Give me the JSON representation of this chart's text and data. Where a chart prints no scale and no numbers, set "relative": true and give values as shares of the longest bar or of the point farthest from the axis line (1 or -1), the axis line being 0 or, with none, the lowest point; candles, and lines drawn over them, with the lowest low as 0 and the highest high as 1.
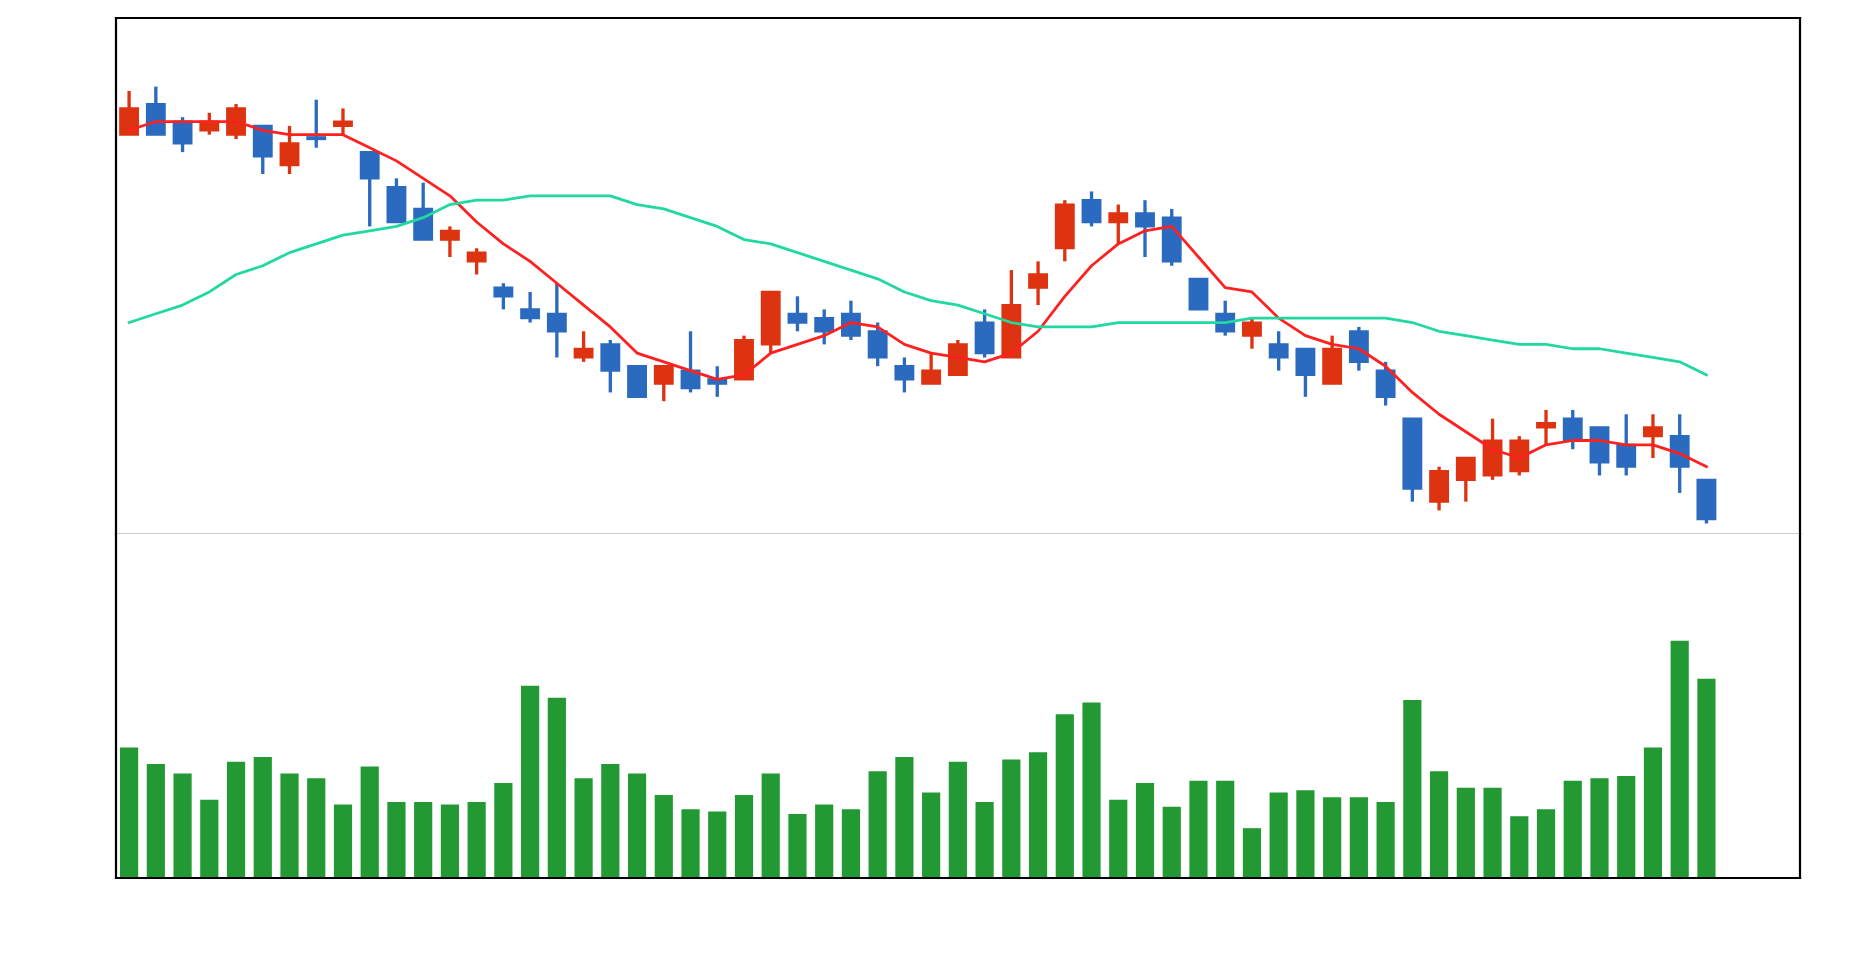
{
  "chart_data": [
    {
      "type": "candlestick",
      "relative": true,
      "categories": [
        null,
        null,
        null,
        null,
        null,
        null,
        null,
        null,
        null,
        null,
        null,
        null,
        null,
        null,
        null,
        null,
        null,
        null,
        null,
        null,
        null,
        null,
        null,
        null,
        null,
        null,
        null,
        null,
        null,
        null,
        null,
        null,
        null,
        null,
        null,
        null,
        null,
        null,
        null,
        null,
        null,
        null,
        null,
        null,
        null,
        null,
        null,
        null,
        null,
        null,
        null,
        null,
        null,
        null,
        null,
        null,
        null,
        null,
        null,
        null
      ],
      "ohlc": [
        [
          0.89,
          0.99,
          0.89,
          0.95
        ],
        [
          0.96,
          1.0,
          0.89,
          0.89
        ],
        [
          0.92,
          0.93,
          0.85,
          0.87
        ],
        [
          0.9,
          0.94,
          0.89,
          0.92
        ],
        [
          0.89,
          0.96,
          0.88,
          0.95
        ],
        [
          0.91,
          0.91,
          0.8,
          0.84
        ],
        [
          0.82,
          0.91,
          0.8,
          0.87
        ],
        [
          0.88,
          0.97,
          0.86,
          0.88
        ],
        [
          0.91,
          0.95,
          0.89,
          0.92
        ],
        [
          0.85,
          0.85,
          0.68,
          0.79
        ],
        [
          0.77,
          0.79,
          0.69,
          0.69
        ],
        [
          0.72,
          0.78,
          0.65,
          0.65
        ],
        [
          0.65,
          0.68,
          0.61,
          0.67
        ],
        [
          0.6,
          0.63,
          0.57,
          0.62
        ],
        [
          0.54,
          0.55,
          0.49,
          0.52
        ],
        [
          0.49,
          0.53,
          0.46,
          0.47
        ],
        [
          0.48,
          0.55,
          0.38,
          0.44
        ],
        [
          0.38,
          0.44,
          0.37,
          0.4
        ],
        [
          0.41,
          0.42,
          0.3,
          0.35
        ],
        [
          0.36,
          0.36,
          0.29,
          0.29
        ],
        [
          0.32,
          0.36,
          0.28,
          0.36
        ],
        [
          0.35,
          0.44,
          0.3,
          0.31
        ],
        [
          0.33,
          0.36,
          0.29,
          0.32
        ],
        [
          0.33,
          0.43,
          0.33,
          0.42
        ],
        [
          0.41,
          0.53,
          0.39,
          0.53
        ],
        [
          0.48,
          0.52,
          0.44,
          0.46
        ],
        [
          0.47,
          0.49,
          0.41,
          0.44
        ],
        [
          0.48,
          0.51,
          0.42,
          0.43
        ],
        [
          0.44,
          0.46,
          0.36,
          0.38
        ],
        [
          0.36,
          0.38,
          0.3,
          0.33
        ],
        [
          0.32,
          0.39,
          0.32,
          0.35
        ],
        [
          0.34,
          0.42,
          0.34,
          0.41
        ],
        [
          0.46,
          0.49,
          0.38,
          0.39
        ],
        [
          0.38,
          0.58,
          0.38,
          0.5
        ],
        [
          0.54,
          0.6,
          0.5,
          0.57
        ],
        [
          0.63,
          0.74,
          0.6,
          0.73
        ],
        [
          0.74,
          0.76,
          0.68,
          0.69
        ],
        [
          0.69,
          0.73,
          0.64,
          0.71
        ],
        [
          0.71,
          0.74,
          0.61,
          0.68
        ],
        [
          0.7,
          0.72,
          0.59,
          0.6
        ],
        [
          0.56,
          0.56,
          0.49,
          0.49
        ],
        [
          0.48,
          0.51,
          0.43,
          0.44
        ],
        [
          0.43,
          0.47,
          0.4,
          0.46
        ],
        [
          0.41,
          0.44,
          0.35,
          0.38
        ],
        [
          0.4,
          0.4,
          0.29,
          0.34
        ],
        [
          0.32,
          0.43,
          0.32,
          0.4
        ],
        [
          0.44,
          0.45,
          0.35,
          0.37
        ],
        [
          0.35,
          0.37,
          0.27,
          0.29
        ],
        [
          0.24,
          0.24,
          0.05,
          0.08
        ],
        [
          0.05,
          0.13,
          0.03,
          0.12
        ],
        [
          0.1,
          0.15,
          0.05,
          0.15
        ],
        [
          0.11,
          0.24,
          0.1,
          0.19
        ],
        [
          0.12,
          0.2,
          0.11,
          0.19
        ],
        [
          0.22,
          0.26,
          0.18,
          0.23
        ],
        [
          0.24,
          0.26,
          0.17,
          0.19
        ],
        [
          0.22,
          0.22,
          0.11,
          0.14
        ],
        [
          0.18,
          0.25,
          0.11,
          0.13
        ],
        [
          0.2,
          0.25,
          0.15,
          0.22
        ],
        [
          0.2,
          0.25,
          0.07,
          0.13
        ],
        [
          0.1,
          0.1,
          0.0,
          0.01
        ]
      ],
      "colors": [
        "#dd3311",
        "#2a6abf",
        "#2a6abf",
        "#dd3311",
        "#dd3311",
        "#2a6abf",
        "#dd3311",
        "#2a6abf",
        "#dd3311",
        "#2a6abf",
        "#2a6abf",
        "#2a6abf",
        "#dd3311",
        "#dd3311",
        "#2a6abf",
        "#2a6abf",
        "#2a6abf",
        "#dd3311",
        "#2a6abf",
        "#2a6abf",
        "#dd3311",
        "#2a6abf",
        "#2a6abf",
        "#dd3311",
        "#dd3311",
        "#2a6abf",
        "#2a6abf",
        "#2a6abf",
        "#2a6abf",
        "#2a6abf",
        "#dd3311",
        "#dd3311",
        "#2a6abf",
        "#dd3311",
        "#dd3311",
        "#dd3311",
        "#2a6abf",
        "#dd3311",
        "#2a6abf",
        "#2a6abf",
        "#2a6abf",
        "#2a6abf",
        "#dd3311",
        "#2a6abf",
        "#2a6abf",
        "#dd3311",
        "#2a6abf",
        "#2a6abf",
        "#2a6abf",
        "#dd3311",
        "#dd3311",
        "#dd3311",
        "#dd3311",
        "#dd3311",
        "#2a6abf",
        "#2a6abf",
        "#2a6abf",
        "#dd3311",
        "#2a6abf",
        "#2a6abf"
      ],
      "series": [
        {
          "type": "line",
          "color": "#ff2020",
          "values": [
            0.9,
            0.92,
            0.92,
            0.92,
            0.92,
            0.9,
            0.89,
            0.89,
            0.89,
            0.86,
            0.83,
            0.79,
            0.75,
            0.69,
            0.64,
            0.6,
            0.55,
            0.5,
            0.45,
            0.39,
            0.37,
            0.35,
            0.33,
            0.34,
            0.39,
            0.41,
            0.43,
            0.46,
            0.45,
            0.41,
            0.39,
            0.38,
            0.37,
            0.39,
            0.44,
            0.52,
            0.59,
            0.64,
            0.67,
            0.68,
            0.61,
            0.54,
            0.53,
            0.47,
            0.43,
            0.41,
            0.4,
            0.36,
            0.3,
            0.25,
            0.21,
            0.17,
            0.15,
            0.18,
            0.19,
            0.19,
            0.18,
            0.18,
            0.16,
            0.13
          ]
        },
        {
          "type": "line",
          "color": "#20d8a0",
          "values": [
            0.46,
            0.48,
            0.5,
            0.53,
            0.57,
            0.59,
            0.62,
            0.64,
            0.66,
            0.67,
            0.68,
            0.7,
            0.73,
            0.74,
            0.74,
            0.75,
            0.75,
            0.75,
            0.75,
            0.73,
            0.72,
            0.7,
            0.68,
            0.65,
            0.64,
            0.62,
            0.6,
            0.58,
            0.56,
            0.53,
            0.51,
            0.5,
            0.48,
            0.46,
            0.45,
            0.45,
            0.45,
            0.46,
            0.46,
            0.46,
            0.46,
            0.46,
            0.47,
            0.47,
            0.47,
            0.47,
            0.47,
            0.47,
            0.46,
            0.44,
            0.43,
            0.42,
            0.41,
            0.41,
            0.4,
            0.4,
            0.39,
            0.38,
            0.37,
            0.34
          ]
        }
      ]
    },
    {
      "type": "bar",
      "relative": true,
      "color": "#229933",
      "categories": [
        null,
        null,
        null,
        null,
        null,
        null,
        null,
        null,
        null,
        null,
        null,
        null,
        null,
        null,
        null,
        null,
        null,
        null,
        null,
        null,
        null,
        null,
        null,
        null,
        null,
        null,
        null,
        null,
        null,
        null,
        null,
        null,
        null,
        null,
        null,
        null,
        null,
        null,
        null,
        null,
        null,
        null,
        null,
        null,
        null,
        null,
        null,
        null,
        null,
        null,
        null,
        null,
        null,
        null,
        null,
        null,
        null,
        null,
        null,
        null
      ],
      "values": [
        0.55,
        0.48,
        0.44,
        0.33,
        0.49,
        0.51,
        0.44,
        0.42,
        0.31,
        0.47,
        0.32,
        0.32,
        0.31,
        0.32,
        0.4,
        0.81,
        0.76,
        0.42,
        0.48,
        0.44,
        0.35,
        0.29,
        0.28,
        0.35,
        0.44,
        0.27,
        0.31,
        0.29,
        0.45,
        0.51,
        0.36,
        0.49,
        0.32,
        0.5,
        0.53,
        0.69,
        0.74,
        0.33,
        0.4,
        0.3,
        0.41,
        0.41,
        0.21,
        0.36,
        0.37,
        0.34,
        0.34,
        0.32,
        0.75,
        0.45,
        0.38,
        0.38,
        0.26,
        0.29,
        0.41,
        0.42,
        0.43,
        0.55,
        1.0,
        0.84
      ]
    }
  ]
}
